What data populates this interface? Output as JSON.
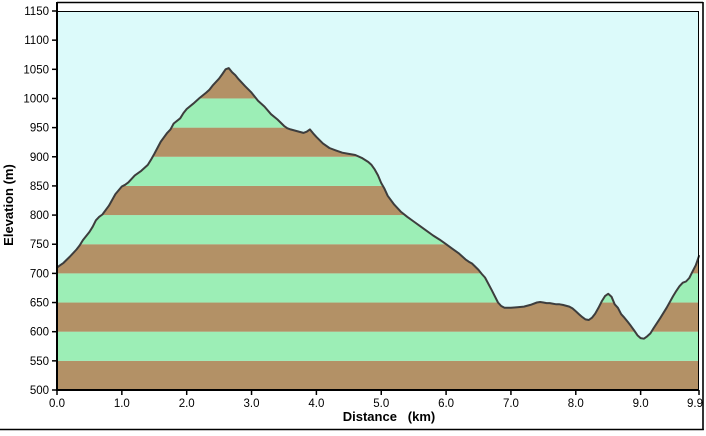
{
  "chart_data": {
    "type": "area",
    "title": "",
    "xlabel": "Distance   (km)",
    "ylabel": "Elevation (m)",
    "xlim": [
      0.0,
      9.9
    ],
    "ylim": [
      500,
      1150
    ],
    "grid": false,
    "legend": "none",
    "x_ticks": [
      {
        "value": 0.0,
        "label": "0.0"
      },
      {
        "value": 1.0,
        "label": "1.0"
      },
      {
        "value": 2.0,
        "label": "2.0"
      },
      {
        "value": 3.0,
        "label": "3.0"
      },
      {
        "value": 4.0,
        "label": "4.0"
      },
      {
        "value": 5.0,
        "label": "5.0"
      },
      {
        "value": 6.0,
        "label": "6.0"
      },
      {
        "value": 7.0,
        "label": "7.0"
      },
      {
        "value": 8.0,
        "label": "8.0"
      },
      {
        "value": 9.0,
        "label": "9.0"
      },
      {
        "value": 9.9,
        "label": "9.9"
      }
    ],
    "y_ticks": [
      {
        "value": 1150,
        "label": "1150"
      },
      {
        "value": 1100,
        "label": "1100"
      },
      {
        "value": 1050,
        "label": "1050"
      },
      {
        "value": 1000,
        "label": "1000"
      },
      {
        "value": 950,
        "label": "950"
      },
      {
        "value": 900,
        "label": "900"
      },
      {
        "value": 850,
        "label": "850"
      },
      {
        "value": 800,
        "label": "800"
      },
      {
        "value": 750,
        "label": "750"
      },
      {
        "value": 700,
        "label": "700"
      },
      {
        "value": 650,
        "label": "650"
      },
      {
        "value": 600,
        "label": "600"
      },
      {
        "value": 550,
        "label": "550"
      },
      {
        "value": 500,
        "label": "500"
      }
    ],
    "stripe_interval_m": 50,
    "colors": {
      "plot_background": "#dcfafa",
      "stripe_brown": "#b39166",
      "stripe_green": "#9ceeb6",
      "profile_line": "#3d3d3d",
      "frame": "#000000"
    },
    "series": [
      {
        "name": "elevation-profile",
        "points": [
          [
            0.0,
            710
          ],
          [
            0.05,
            714
          ],
          [
            0.1,
            718
          ],
          [
            0.2,
            729
          ],
          [
            0.3,
            741
          ],
          [
            0.35,
            748
          ],
          [
            0.4,
            757
          ],
          [
            0.5,
            771
          ],
          [
            0.55,
            780
          ],
          [
            0.6,
            791
          ],
          [
            0.65,
            797
          ],
          [
            0.7,
            801
          ],
          [
            0.8,
            816
          ],
          [
            0.9,
            836
          ],
          [
            1.0,
            849
          ],
          [
            1.05,
            852
          ],
          [
            1.1,
            856
          ],
          [
            1.2,
            868
          ],
          [
            1.3,
            876
          ],
          [
            1.4,
            886
          ],
          [
            1.45,
            895
          ],
          [
            1.5,
            905
          ],
          [
            1.6,
            926
          ],
          [
            1.7,
            941
          ],
          [
            1.75,
            947
          ],
          [
            1.8,
            957
          ],
          [
            1.9,
            966
          ],
          [
            1.95,
            975
          ],
          [
            2.0,
            982
          ],
          [
            2.1,
            991
          ],
          [
            2.2,
            1001
          ],
          [
            2.3,
            1010
          ],
          [
            2.35,
            1015
          ],
          [
            2.4,
            1022
          ],
          [
            2.5,
            1034
          ],
          [
            2.55,
            1042
          ],
          [
            2.6,
            1050
          ],
          [
            2.65,
            1052
          ],
          [
            2.7,
            1045
          ],
          [
            2.75,
            1040
          ],
          [
            2.8,
            1033
          ],
          [
            2.9,
            1021
          ],
          [
            3.0,
            1010
          ],
          [
            3.05,
            1003
          ],
          [
            3.1,
            996
          ],
          [
            3.2,
            986
          ],
          [
            3.3,
            973
          ],
          [
            3.4,
            964
          ],
          [
            3.5,
            953
          ],
          [
            3.55,
            949
          ],
          [
            3.6,
            947
          ],
          [
            3.7,
            944
          ],
          [
            3.8,
            941
          ],
          [
            3.85,
            943
          ],
          [
            3.9,
            947
          ],
          [
            3.95,
            940
          ],
          [
            4.0,
            934
          ],
          [
            4.1,
            923
          ],
          [
            4.2,
            915
          ],
          [
            4.3,
            911
          ],
          [
            4.4,
            907
          ],
          [
            4.5,
            905
          ],
          [
            4.6,
            903
          ],
          [
            4.7,
            898
          ],
          [
            4.8,
            891
          ],
          [
            4.85,
            886
          ],
          [
            4.9,
            878
          ],
          [
            4.95,
            868
          ],
          [
            5.0,
            855
          ],
          [
            5.05,
            845
          ],
          [
            5.1,
            833
          ],
          [
            5.2,
            818
          ],
          [
            5.3,
            806
          ],
          [
            5.4,
            797
          ],
          [
            5.5,
            789
          ],
          [
            5.6,
            781
          ],
          [
            5.7,
            773
          ],
          [
            5.8,
            765
          ],
          [
            5.9,
            758
          ],
          [
            6.0,
            750
          ],
          [
            6.1,
            742
          ],
          [
            6.2,
            734
          ],
          [
            6.3,
            724
          ],
          [
            6.35,
            720
          ],
          [
            6.4,
            717
          ],
          [
            6.5,
            706
          ],
          [
            6.55,
            699
          ],
          [
            6.6,
            693
          ],
          [
            6.7,
            672
          ],
          [
            6.8,
            650
          ],
          [
            6.85,
            644
          ],
          [
            6.9,
            641
          ],
          [
            7.0,
            641
          ],
          [
            7.1,
            642
          ],
          [
            7.2,
            643
          ],
          [
            7.3,
            646
          ],
          [
            7.4,
            650
          ],
          [
            7.45,
            651
          ],
          [
            7.5,
            650
          ],
          [
            7.55,
            649
          ],
          [
            7.6,
            649
          ],
          [
            7.7,
            647
          ],
          [
            7.75,
            647
          ],
          [
            7.8,
            646
          ],
          [
            7.9,
            643
          ],
          [
            7.95,
            640
          ],
          [
            8.0,
            635
          ],
          [
            8.05,
            630
          ],
          [
            8.1,
            625
          ],
          [
            8.15,
            621
          ],
          [
            8.2,
            620
          ],
          [
            8.25,
            624
          ],
          [
            8.3,
            631
          ],
          [
            8.35,
            641
          ],
          [
            8.4,
            652
          ],
          [
            8.45,
            661
          ],
          [
            8.5,
            665
          ],
          [
            8.55,
            660
          ],
          [
            8.6,
            647
          ],
          [
            8.65,
            641
          ],
          [
            8.7,
            630
          ],
          [
            8.75,
            624
          ],
          [
            8.8,
            617
          ],
          [
            8.85,
            610
          ],
          [
            8.9,
            602
          ],
          [
            8.95,
            594
          ],
          [
            9.0,
            589
          ],
          [
            9.05,
            588
          ],
          [
            9.1,
            592
          ],
          [
            9.15,
            597
          ],
          [
            9.2,
            606
          ],
          [
            9.3,
            623
          ],
          [
            9.4,
            641
          ],
          [
            9.5,
            661
          ],
          [
            9.55,
            670
          ],
          [
            9.6,
            678
          ],
          [
            9.65,
            684
          ],
          [
            9.7,
            686
          ],
          [
            9.75,
            692
          ],
          [
            9.8,
            703
          ],
          [
            9.85,
            714
          ],
          [
            9.9,
            730
          ]
        ]
      }
    ]
  }
}
